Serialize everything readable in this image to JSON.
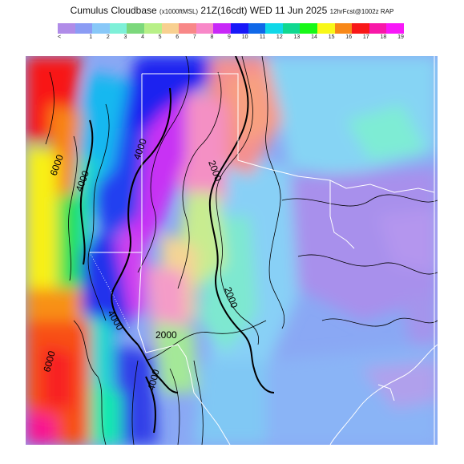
{
  "title": {
    "main": "Cumulus Cloudbase",
    "units": "(x1000ftMSL)",
    "valid": "21Z(16cdt) WED 11 Jun 2025",
    "forecast": "12hrFcst@1002z RAP"
  },
  "colorbar": {
    "colors": [
      "#b08ce8",
      "#8b9cf4",
      "#88c8f8",
      "#7ef0d8",
      "#7cd87c",
      "#b8f088",
      "#f8d090",
      "#f88888",
      "#f888c8",
      "#c828f8",
      "#1818f8",
      "#1068e8",
      "#10d8e8",
      "#10d890",
      "#18f818",
      "#f8f818",
      "#f88818",
      "#f81818",
      "#f818a8",
      "#f818f8"
    ],
    "tick_labels": [
      "<",
      "1",
      "2",
      "3",
      "4",
      "5",
      "6",
      "7",
      "8",
      "9",
      "10",
      "11",
      "12",
      "13",
      "14",
      "15",
      "16",
      "17",
      "18",
      "19"
    ]
  },
  "contour_labels": [
    {
      "text": "6000"
    },
    {
      "text": "4000"
    },
    {
      "text": "4000"
    },
    {
      "text": "2000"
    },
    {
      "text": "2000"
    },
    {
      "text": "2000"
    },
    {
      "text": "4000"
    },
    {
      "text": "6000"
    },
    {
      "text": "4000"
    }
  ]
}
